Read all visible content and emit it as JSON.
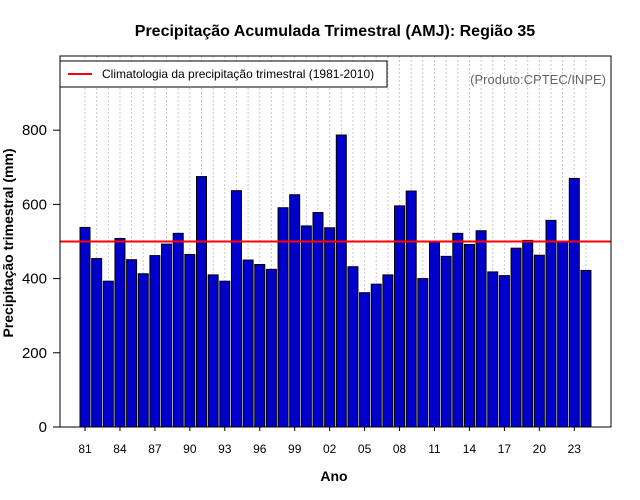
{
  "chart_data": {
    "type": "bar",
    "title": "Precipitação Acumulada Trimestral (AMJ): Região 35",
    "xlabel": "Ano",
    "ylabel": "Precipitação trimestral (mm)",
    "ylim": [
      0,
      1000
    ],
    "yticks": [
      0,
      200,
      400,
      600,
      800
    ],
    "xtick_labels": [
      "81",
      "84",
      "87",
      "90",
      "93",
      "96",
      "99",
      "02",
      "05",
      "08",
      "11",
      "14",
      "17",
      "20",
      "23"
    ],
    "categories": [
      "1981",
      "1982",
      "1983",
      "1984",
      "1985",
      "1986",
      "1987",
      "1988",
      "1989",
      "1990",
      "1991",
      "1992",
      "1993",
      "1994",
      "1995",
      "1996",
      "1997",
      "1998",
      "1999",
      "2000",
      "2001",
      "2002",
      "2003",
      "2004",
      "2005",
      "2006",
      "2007",
      "2008",
      "2009",
      "2010",
      "2011",
      "2012",
      "2013",
      "2014",
      "2015",
      "2016",
      "2017",
      "2018",
      "2019",
      "2020",
      "2021",
      "2022",
      "2023",
      "2024"
    ],
    "values": [
      538,
      454,
      393,
      508,
      451,
      413,
      462,
      493,
      522,
      465,
      675,
      410,
      393,
      637,
      450,
      438,
      425,
      591,
      626,
      542,
      578,
      537,
      787,
      432,
      362,
      385,
      410,
      596,
      636,
      400,
      500,
      460,
      522,
      492,
      529,
      418,
      408,
      482,
      503,
      463,
      557,
      499,
      670,
      422
    ],
    "bar_color": "#0000cd",
    "climatology": {
      "value": 500,
      "color": "#ff0000",
      "label": "Climatologia da precipitação trimestral (1981-2010)"
    },
    "legend_position": "top-left",
    "credit": "(Produto:CPTEC/INPE)",
    "grid": "vertical-dotted"
  }
}
